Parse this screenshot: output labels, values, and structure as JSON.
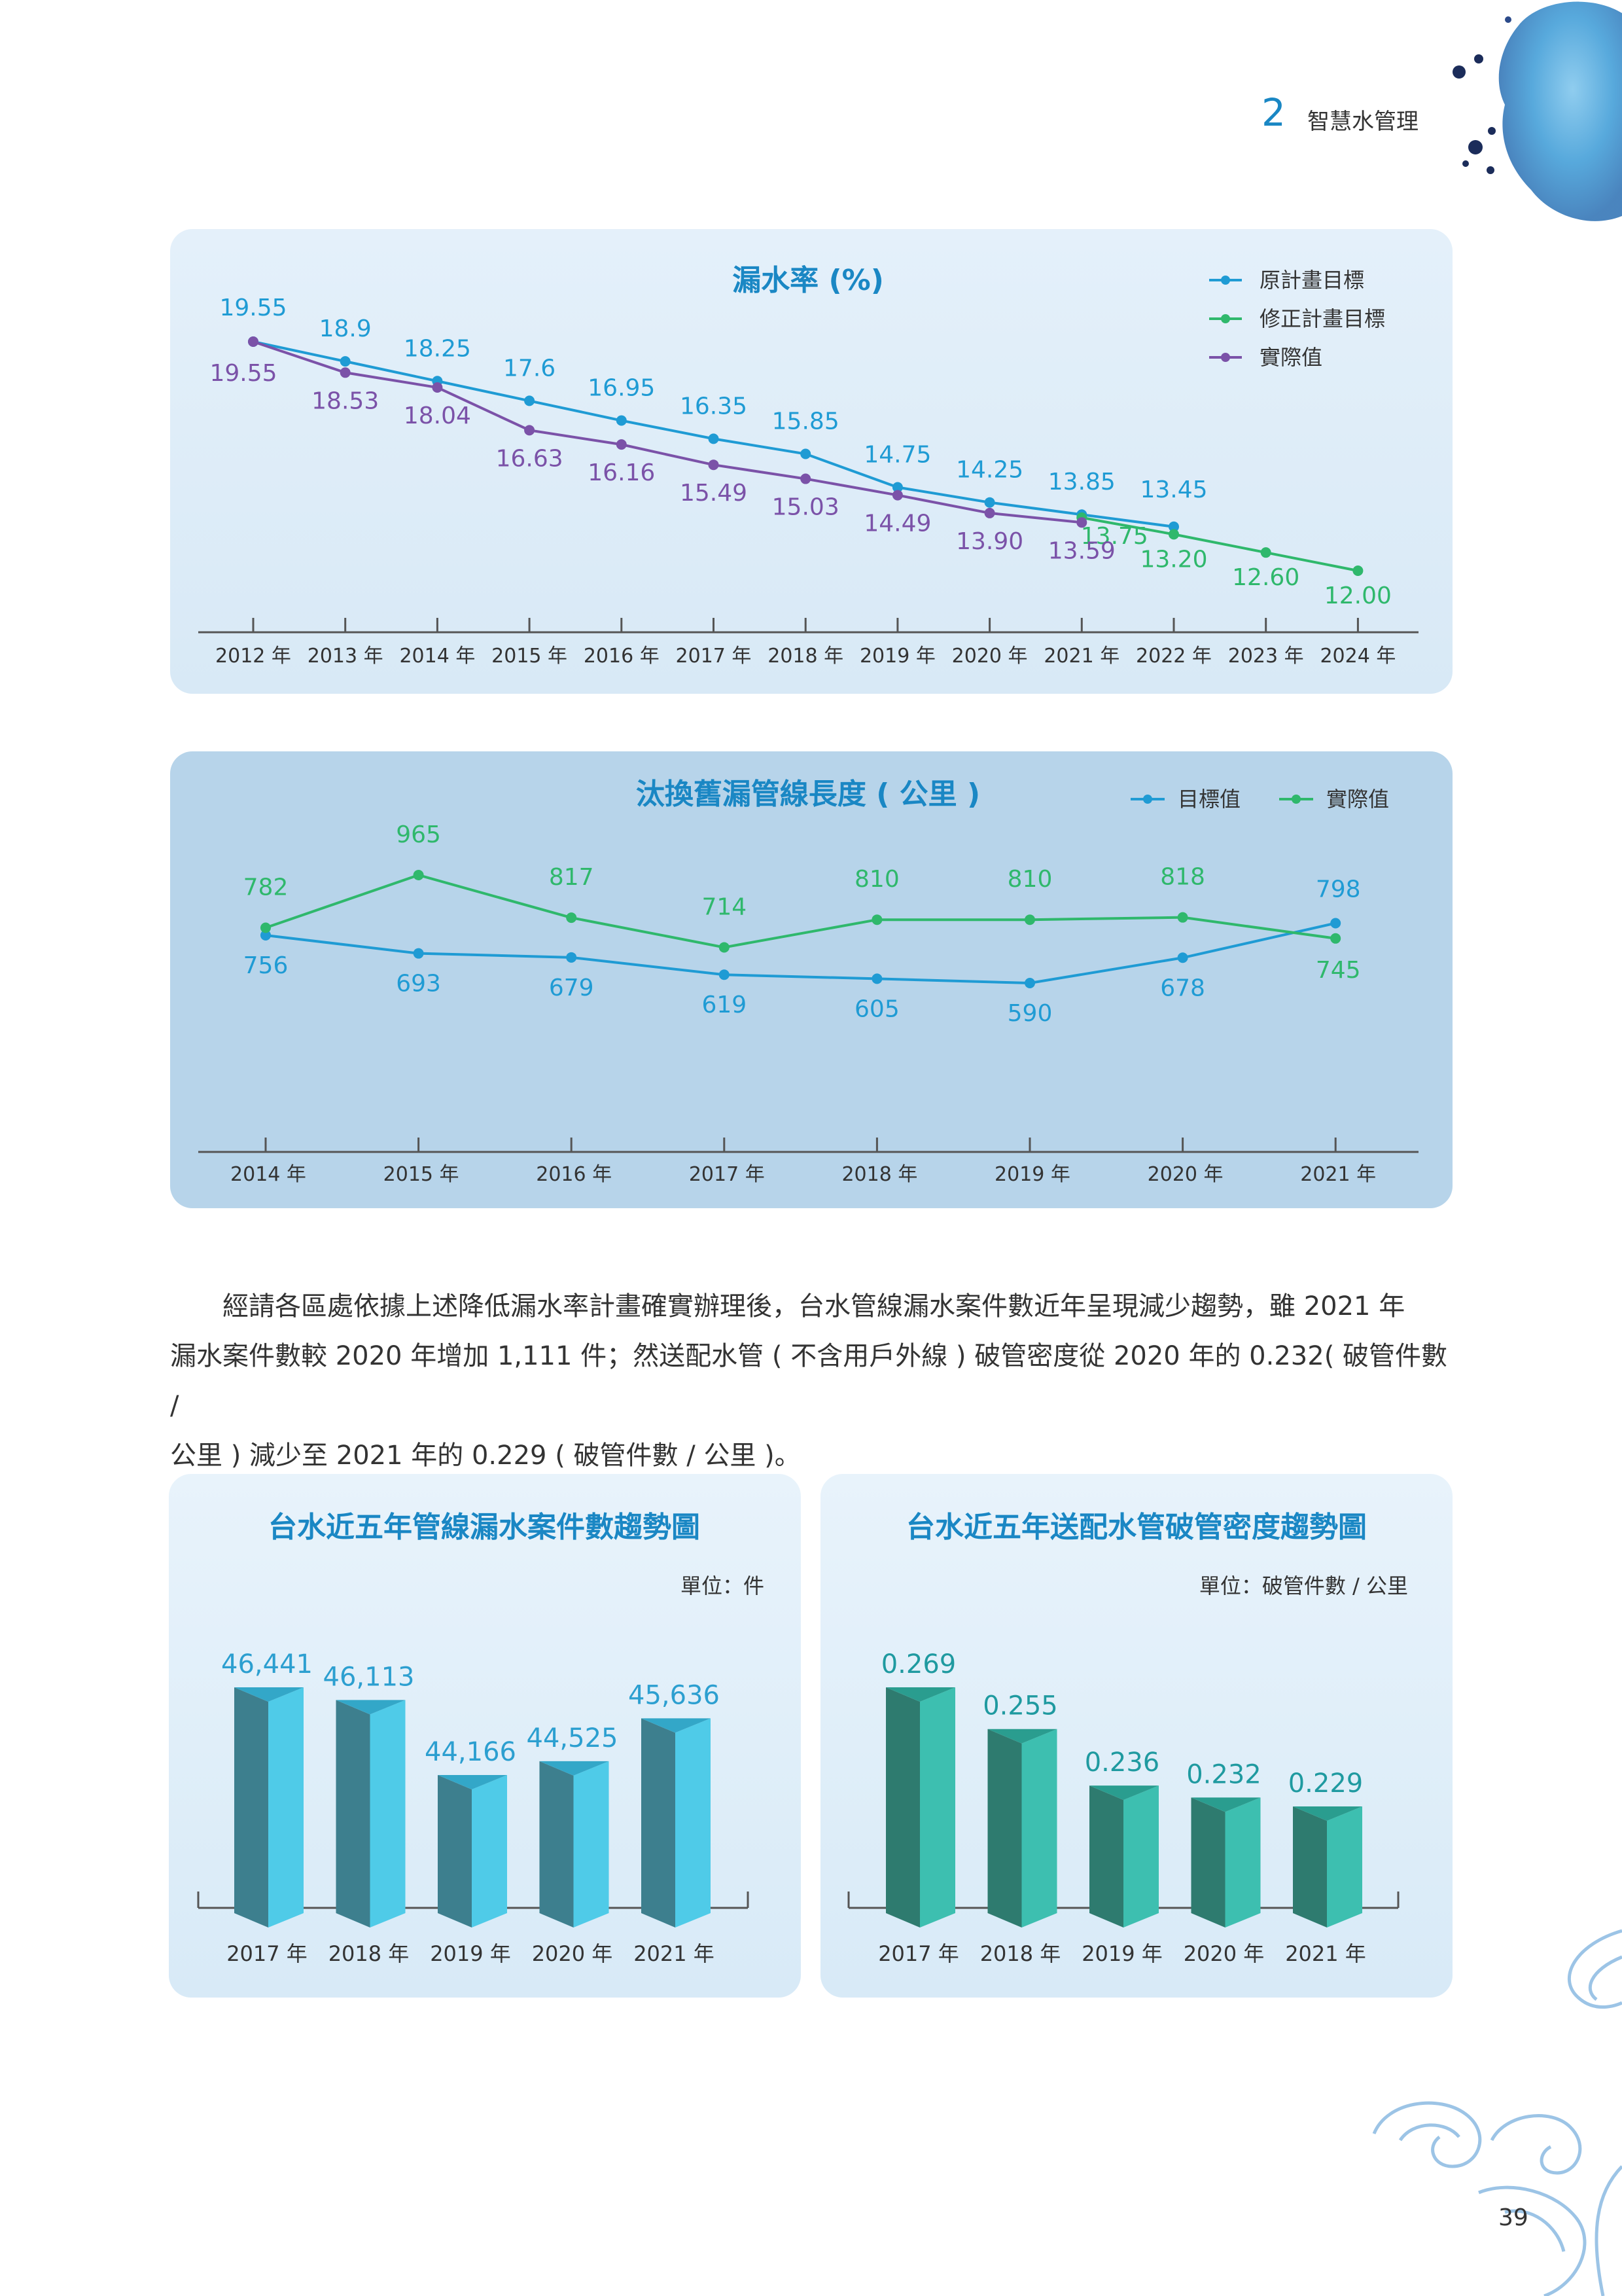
{
  "header": {
    "chapter_number": "2",
    "chapter_title": "智慧水管理"
  },
  "page_number": "39",
  "paragraph": {
    "line1": "　　經請各區處依據上述降低漏水率計畫確實辦理後，台水管線漏水案件數近年呈現減少趨勢，雖 2021 年",
    "line2": "漏水案件數較 2020 年增加 1,111 件；然送配水管 ( 不含用戶外線 ) 破管密度從 2020 年的 0.232( 破管件數 /",
    "line3": "公里 ) 減少至 2021 年的 0.229 ( 破管件數 / 公里 )。"
  },
  "chart_data": [
    {
      "type": "line",
      "title": "漏水率 (%)",
      "categories": [
        "2012 年",
        "2013 年",
        "2014 年",
        "2015 年",
        "2016 年",
        "2017 年",
        "2018 年",
        "2019 年",
        "2020 年",
        "2021 年",
        "2022 年",
        "2023 年",
        "2024 年"
      ],
      "series": [
        {
          "name": "原計畫目標",
          "color": "#1f9bd4",
          "values": [
            19.55,
            18.9,
            18.25,
            17.6,
            16.95,
            16.35,
            15.85,
            14.75,
            14.25,
            13.85,
            13.45,
            null,
            null
          ],
          "labels": [
            "19.55",
            "18.9",
            "18.25",
            "17.6",
            "16.95",
            "16.35",
            "15.85",
            "14.75",
            "14.25",
            "13.85",
            "13.45",
            "",
            ""
          ]
        },
        {
          "name": "修正計畫目標",
          "color": "#2fb86c",
          "values": [
            null,
            null,
            null,
            null,
            null,
            null,
            null,
            null,
            null,
            13.75,
            13.2,
            12.6,
            12.0
          ],
          "labels": [
            "",
            "",
            "",
            "",
            "",
            "",
            "",
            "",
            "",
            "13.75",
            "13.20",
            "12.60",
            "12.00"
          ]
        },
        {
          "name": "實際值",
          "color": "#7b52a8",
          "values": [
            19.55,
            18.53,
            18.04,
            16.63,
            16.16,
            15.49,
            15.03,
            14.49,
            13.9,
            13.59,
            null,
            null,
            null
          ],
          "labels": [
            "19.55",
            "18.53",
            "18.04",
            "16.63",
            "16.16",
            "15.49",
            "15.03",
            "14.49",
            "13.90",
            "13.59",
            "",
            "",
            ""
          ]
        }
      ],
      "legend_position": "top-right"
    },
    {
      "type": "line",
      "title": "汰換舊漏管線長度 ( 公里 )",
      "categories": [
        "2014 年",
        "2015 年",
        "2016 年",
        "2017 年",
        "2018 年",
        "2019 年",
        "2020 年",
        "2021 年"
      ],
      "series": [
        {
          "name": "目標值",
          "color": "#1f9bd4",
          "values": [
            756,
            693,
            679,
            619,
            605,
            590,
            678,
            798
          ],
          "labels": [
            "756",
            "693",
            "679",
            "619",
            "605",
            "590",
            "678",
            "798"
          ]
        },
        {
          "name": "實際值",
          "color": "#2fb86c",
          "values": [
            782,
            965,
            817,
            714,
            810,
            810,
            818,
            745
          ],
          "labels": [
            "782",
            "965",
            "817",
            "714",
            "810",
            "810",
            "818",
            "745"
          ]
        }
      ],
      "legend_position": "top-right"
    },
    {
      "type": "bar",
      "title": "台水近五年管線漏水案件數趨勢圖",
      "unit": "單位：件",
      "categories": [
        "2017 年",
        "2018 年",
        "2019 年",
        "2020 年",
        "2021 年"
      ],
      "values": [
        46441,
        46113,
        44166,
        44525,
        45636
      ],
      "labels": [
        "46,441",
        "46,113",
        "44,166",
        "44,525",
        "45,636"
      ],
      "colors": {
        "front": "#4fcbe8",
        "side": "#3d7f8e",
        "top": "#33a7c8",
        "label": "#2c9fd0"
      }
    },
    {
      "type": "bar",
      "title": "台水近五年送配水管破管密度趨勢圖",
      "unit": "單位：破管件數 / 公里",
      "categories": [
        "2017 年",
        "2018 年",
        "2019 年",
        "2020 年",
        "2021 年"
      ],
      "values": [
        0.269,
        0.255,
        0.236,
        0.232,
        0.229
      ],
      "labels": [
        "0.269",
        "0.255",
        "0.236",
        "0.232",
        "0.229"
      ],
      "colors": {
        "front": "#3dbfb0",
        "side": "#2e7b6f",
        "top": "#2a9d8f",
        "label": "#1f9aa0"
      }
    }
  ]
}
